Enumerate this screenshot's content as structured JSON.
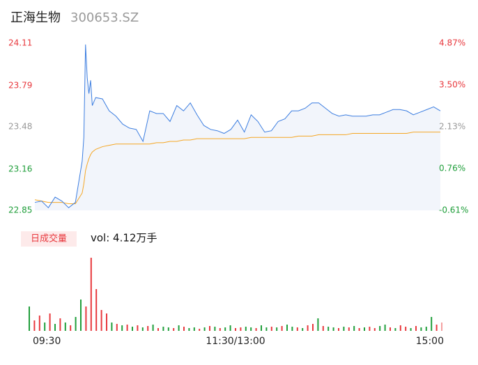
{
  "chart_data": [
    {
      "type": "line",
      "title": "正海生物",
      "subtitle": "300653.SZ",
      "x": [
        0,
        4,
        8,
        12,
        16,
        20,
        24,
        28,
        29,
        30,
        31,
        32,
        33,
        34,
        36,
        40,
        44,
        48,
        52,
        56,
        60,
        64,
        68,
        72,
        76,
        80,
        84,
        88,
        92,
        96,
        100,
        104,
        108,
        112,
        116,
        120,
        124,
        128,
        132,
        136,
        140,
        144,
        148,
        152,
        156,
        160,
        164,
        168,
        172,
        176,
        180,
        184,
        188,
        192,
        196,
        200,
        204,
        208,
        212,
        216,
        220,
        224,
        228,
        232,
        236,
        240
      ],
      "xlim": [
        0,
        240
      ],
      "ylim": [
        22.85,
        24.11
      ],
      "yticks": [
        22.85,
        23.16,
        23.48,
        23.79,
        24.11
      ],
      "ytick_colors": [
        "#1f9e3a",
        "#1f9e3a",
        "#999999",
        "#e8383d",
        "#e8383d"
      ],
      "y2lim": [
        -0.61,
        4.87
      ],
      "y2ticks": [
        {
          "value": -0.61,
          "label": "-0.61%"
        },
        {
          "value": 0.76,
          "label": "0.76%"
        },
        {
          "value": 2.13,
          "label": "2.13%"
        },
        {
          "value": 3.5,
          "label": "3.50%"
        },
        {
          "value": 4.87,
          "label": "4.87%"
        }
      ],
      "series": [
        {
          "color": "#3b7de0",
          "values": [
            22.91,
            22.92,
            22.87,
            22.95,
            22.92,
            22.87,
            22.91,
            23.22,
            23.4,
            24.1,
            23.85,
            23.73,
            23.83,
            23.64,
            23.7,
            23.69,
            23.6,
            23.56,
            23.5,
            23.47,
            23.46,
            23.37,
            23.6,
            23.58,
            23.58,
            23.52,
            23.64,
            23.6,
            23.66,
            23.57,
            23.49,
            23.46,
            23.45,
            23.43,
            23.46,
            23.53,
            23.44,
            23.57,
            23.52,
            23.44,
            23.45,
            23.52,
            23.54,
            23.6,
            23.6,
            23.62,
            23.66,
            23.66,
            23.62,
            23.58,
            23.56,
            23.57,
            23.56,
            23.56,
            23.56,
            23.57,
            23.57,
            23.59,
            23.61,
            23.61,
            23.6,
            23.57,
            23.59,
            23.61,
            23.63,
            23.6
          ]
        },
        {
          "color": "#f5a623",
          "values": [
            22.93,
            22.92,
            22.91,
            22.91,
            22.91,
            22.9,
            22.9,
            22.98,
            23.05,
            23.15,
            23.2,
            23.24,
            23.27,
            23.29,
            23.31,
            23.33,
            23.34,
            23.35,
            23.35,
            23.35,
            23.35,
            23.35,
            23.35,
            23.36,
            23.36,
            23.37,
            23.37,
            23.38,
            23.38,
            23.39,
            23.39,
            23.39,
            23.39,
            23.39,
            23.39,
            23.39,
            23.39,
            23.4,
            23.4,
            23.4,
            23.4,
            23.4,
            23.4,
            23.4,
            23.41,
            23.41,
            23.41,
            23.42,
            23.42,
            23.42,
            23.42,
            23.42,
            23.43,
            23.43,
            23.43,
            23.43,
            23.43,
            23.43,
            23.43,
            23.43,
            23.43,
            23.44,
            23.44,
            23.44,
            23.44,
            23.44
          ]
        }
      ]
    },
    {
      "type": "bar",
      "label": "日成交量",
      "annotation": "vol: 4.12万手",
      "x": [
        0,
        3,
        6,
        9,
        12,
        15,
        18,
        21,
        24,
        27,
        30,
        33,
        36,
        39,
        42,
        45,
        48,
        51,
        54,
        57,
        60,
        63,
        66,
        69,
        72,
        75,
        78,
        81,
        84,
        87,
        90,
        93,
        96,
        99,
        102,
        105,
        108,
        111,
        114,
        117,
        120,
        123,
        126,
        129,
        132,
        135,
        138,
        141,
        144,
        147,
        150,
        153,
        156,
        159,
        162,
        165,
        168,
        171,
        174,
        177,
        180,
        183,
        186,
        189,
        192,
        195,
        198,
        201,
        204,
        207,
        210,
        213,
        216,
        219,
        222,
        225,
        228,
        231,
        234,
        237,
        240
      ],
      "xlim": [
        0,
        240
      ],
      "xticks": [
        {
          "value": 0,
          "label": "09:30"
        },
        {
          "value": 120,
          "label": "11:30/13:00"
        },
        {
          "value": 240,
          "label": "15:00"
        }
      ],
      "ylim": [
        0,
        105
      ],
      "values": [
        35,
        15,
        22,
        12,
        25,
        10,
        18,
        12,
        8,
        20,
        45,
        35,
        105,
        60,
        30,
        25,
        12,
        10,
        8,
        9,
        6,
        8,
        5,
        7,
        9,
        4,
        6,
        5,
        4,
        8,
        6,
        4,
        5,
        3,
        5,
        7,
        6,
        4,
        5,
        8,
        4,
        5,
        6,
        5,
        4,
        8,
        5,
        6,
        5,
        7,
        9,
        6,
        5,
        4,
        8,
        10,
        18,
        7,
        6,
        5,
        4,
        6,
        5,
        7,
        4,
        5,
        6,
        4,
        7,
        9,
        5,
        4,
        8,
        6,
        4,
        7,
        5,
        6,
        20,
        9,
        12
      ],
      "colors": [
        "#1f9e3a",
        "#e8383d",
        "#e8383d",
        "#1f9e3a",
        "#e8383d",
        "#1f9e3a",
        "#e8383d",
        "#1f9e3a",
        "#e8383d",
        "#1f9e3a",
        "#1f9e3a",
        "#e8383d",
        "#e8383d",
        "#e8383d",
        "#e8383d",
        "#e8383d",
        "#1f9e3a",
        "#e8383d",
        "#1f9e3a",
        "#e8383d",
        "#1f9e3a",
        "#e8383d",
        "#1f9e3a",
        "#e8383d",
        "#1f9e3a",
        "#e8383d",
        "#1f9e3a",
        "#1f9e3a",
        "#e8383d",
        "#1f9e3a",
        "#e8383d",
        "#1f9e3a",
        "#1f9e3a",
        "#e8383d",
        "#1f9e3a",
        "#e8383d",
        "#1f9e3a",
        "#e8383d",
        "#1f9e3a",
        "#1f9e3a",
        "#e8383d",
        "#e8383d",
        "#1f9e3a",
        "#1f9e3a",
        "#e8383d",
        "#1f9e3a",
        "#1f9e3a",
        "#e8383d",
        "#1f9e3a",
        "#e8383d",
        "#1f9e3a",
        "#1f9e3a",
        "#e8383d",
        "#1f9e3a",
        "#e8383d",
        "#e8383d",
        "#1f9e3a",
        "#e8383d",
        "#1f9e3a",
        "#1f9e3a",
        "#e8383d",
        "#1f9e3a",
        "#e8383d",
        "#1f9e3a",
        "#e8383d",
        "#1f9e3a",
        "#e8383d",
        "#e8383d",
        "#1f9e3a",
        "#1f9e3a",
        "#e8383d",
        "#1f9e3a",
        "#e8383d",
        "#e8383d",
        "#1f9e3a",
        "#e8383d",
        "#1f9e3a",
        "#1f9e3a",
        "#1f9e3a",
        "#e8383d",
        "#f4a0a0"
      ]
    }
  ]
}
